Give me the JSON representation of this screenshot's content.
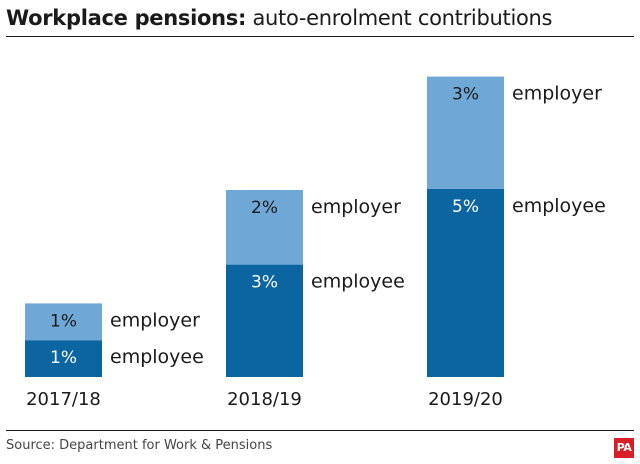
{
  "header": {
    "title_bold": "Workplace pensions:",
    "title_rest": " auto-enrolment contributions"
  },
  "footer": {
    "source": "Source: Department for Work & Pensions",
    "logo": "PA"
  },
  "colors": {
    "employer": "#6fa8d6",
    "employee": "#0b65a0"
  },
  "chart_data": {
    "type": "bar",
    "stacked": true,
    "categories": [
      "2017/18",
      "2018/19",
      "2019/20"
    ],
    "series": [
      {
        "name": "employee",
        "values": [
          1,
          3,
          5
        ],
        "labels": [
          "1%",
          "3%",
          "5%"
        ]
      },
      {
        "name": "employer",
        "values": [
          1,
          2,
          3
        ],
        "labels": [
          "1%",
          "2%",
          "3%"
        ]
      }
    ],
    "unit": "%",
    "ylim": [
      0,
      8
    ],
    "grid": false,
    "legend": "inline-right"
  }
}
